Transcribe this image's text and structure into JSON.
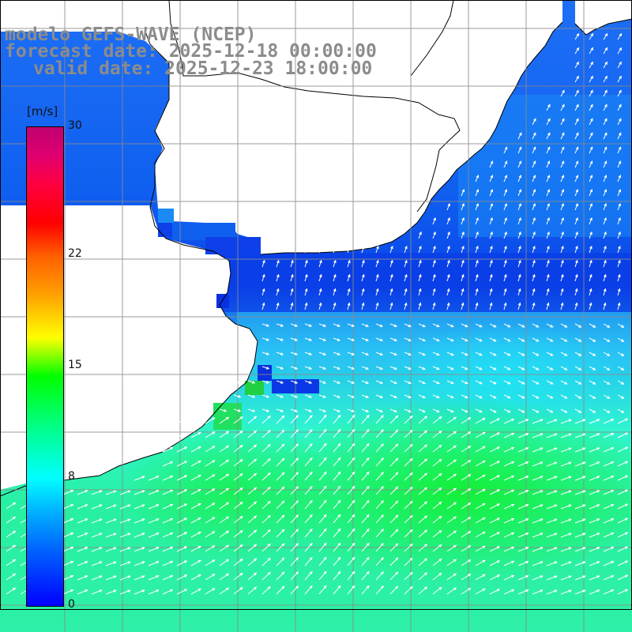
{
  "title": {
    "line1": "modelo GEFS-WAVE (NCEP)",
    "line2": "forecast date: 2025-12-18 00:00:00",
    "line3": "valid date: 2025-12-23 18:00:00"
  },
  "colorbar": {
    "unit": "[m/s]",
    "ticks": [
      {
        "label": "30",
        "value": 30
      },
      {
        "label": "22",
        "value": 22
      },
      {
        "label": "15",
        "value": 15
      },
      {
        "label": "8",
        "value": 8
      },
      {
        "label": "0",
        "value": 0
      }
    ],
    "min": 0,
    "max": 30
  },
  "map": {
    "grid": true,
    "land_color": "#ffffff",
    "coastline_color": "#000000",
    "grid_color": "#8a8a8a",
    "arrow_color": "#ffffff",
    "field": "wind speed with direction arrows"
  }
}
